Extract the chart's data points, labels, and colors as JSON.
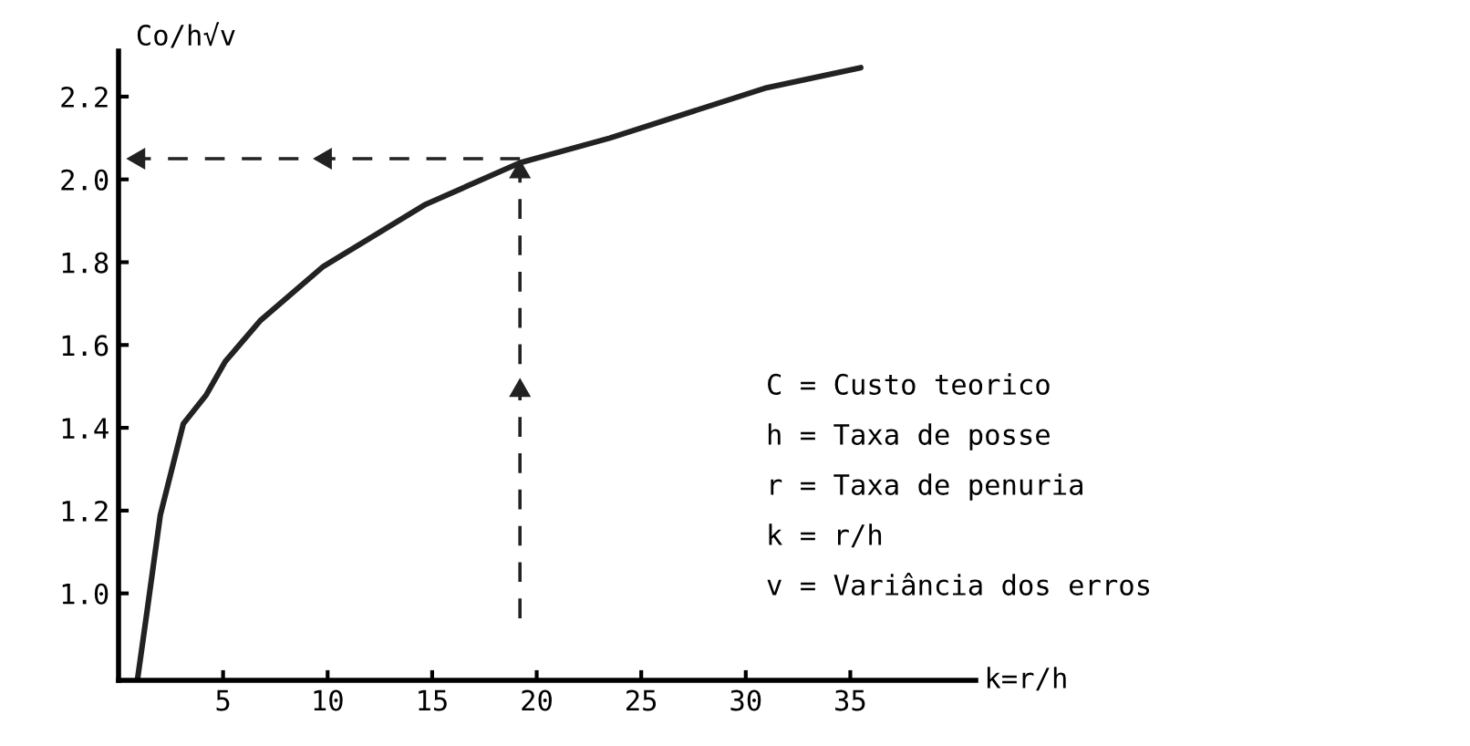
{
  "chart_data": {
    "type": "line",
    "xlabel": "k=r/h",
    "ylabel": "Co/h√v",
    "xlim": [
      0,
      41
    ],
    "ylim": [
      0.79,
      2.31
    ],
    "xticks": [
      5,
      10,
      15,
      20,
      25,
      30,
      35
    ],
    "yticks": [
      {
        "value": 1.0,
        "label": "1.0"
      },
      1.2,
      1.4,
      1.6,
      1.8,
      {
        "value": 2.0,
        "label": "2.0"
      },
      2.2
    ],
    "grid": false,
    "legend": false,
    "marker": "none",
    "series": [
      {
        "color": "#222222",
        "line_style": "solid",
        "x": [
          0.9,
          1.4,
          2.0,
          3.1,
          4.2,
          5.1,
          6.8,
          9.8,
          14.7,
          19.2,
          23.5,
          30.9,
          35.5
        ],
        "values": [
          0.79,
          0.97,
          1.19,
          1.41,
          1.48,
          1.56,
          1.66,
          1.79,
          1.94,
          2.04,
          2.1,
          2.22,
          2.27
        ]
      },
      {
        "color": "#222222",
        "line_style": "dashed",
        "x": [
          19.2,
          19.2
        ],
        "values": [
          0.94,
          2.04
        ]
      },
      {
        "color": "#222222",
        "line_style": "dashed",
        "x": [
          19.2,
          0.6
        ],
        "values": [
          2.05,
          2.05
        ]
      }
    ],
    "annotations": [
      "C = Custo teorico",
      "h = Taxa de posse",
      "r = Taxa de penuria",
      "k = r/h",
      "v = Variância dos erros"
    ]
  }
}
